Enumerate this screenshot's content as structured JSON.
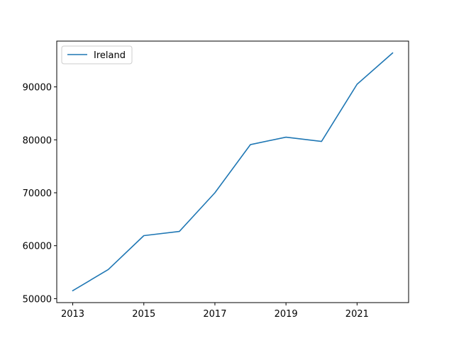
{
  "chart_data": {
    "type": "line",
    "title": "",
    "xlabel": "",
    "ylabel": "",
    "x": [
      2013,
      2014,
      2015,
      2016,
      2017,
      2018,
      2019,
      2020,
      2021,
      2022
    ],
    "series": [
      {
        "name": "Ireland",
        "color": "#1f77b4",
        "values": [
          51500,
          55500,
          61900,
          62700,
          70000,
          79100,
          80500,
          79700,
          90500,
          96400
        ]
      }
    ],
    "xlim": [
      2012.55,
      2022.45
    ],
    "ylim": [
      49250,
      98650
    ],
    "xticks": [
      2013,
      2015,
      2017,
      2019,
      2021
    ],
    "yticks": [
      50000,
      60000,
      70000,
      80000,
      90000
    ],
    "legend_position": "upper-left",
    "grid": false
  }
}
